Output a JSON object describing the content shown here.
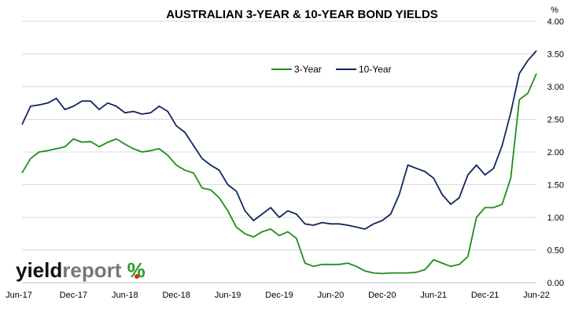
{
  "chart_data": {
    "type": "line",
    "title": "AUSTRALIAN 3-YEAR & 10-YEAR BOND YIELDS",
    "ylabel": "%",
    "ylim": [
      0,
      4
    ],
    "y_ticks": [
      "0.00",
      "0.50",
      "1.00",
      "1.50",
      "2.00",
      "2.50",
      "3.00",
      "3.50",
      "4.00"
    ],
    "y_tick_values": [
      0,
      0.5,
      1,
      1.5,
      2,
      2.5,
      3,
      3.5,
      4
    ],
    "x_ticks": [
      "Jun-17",
      "Dec-17",
      "Jun-18",
      "Dec-18",
      "Jun-19",
      "Dec-19",
      "Jun-20",
      "Dec-20",
      "Jun-21",
      "Dec-21",
      "Jun-22"
    ],
    "x": [
      "2017-06",
      "2017-07",
      "2017-08",
      "2017-09",
      "2017-10",
      "2017-11",
      "2017-12",
      "2018-01",
      "2018-02",
      "2018-03",
      "2018-04",
      "2018-05",
      "2018-06",
      "2018-07",
      "2018-08",
      "2018-09",
      "2018-10",
      "2018-11",
      "2018-12",
      "2019-01",
      "2019-02",
      "2019-03",
      "2019-04",
      "2019-05",
      "2019-06",
      "2019-07",
      "2019-08",
      "2019-09",
      "2019-10",
      "2019-11",
      "2019-12",
      "2020-01",
      "2020-02",
      "2020-03",
      "2020-04",
      "2020-05",
      "2020-06",
      "2020-07",
      "2020-08",
      "2020-09",
      "2020-10",
      "2020-11",
      "2020-12",
      "2021-01",
      "2021-02",
      "2021-03",
      "2021-04",
      "2021-05",
      "2021-06",
      "2021-07",
      "2021-08",
      "2021-09",
      "2021-10",
      "2021-11",
      "2021-12",
      "2022-01",
      "2022-02",
      "2022-03",
      "2022-04",
      "2022-05",
      "2022-06"
    ],
    "series": [
      {
        "name": "3-Year",
        "color": "#1f8f1a",
        "values": [
          1.68,
          1.9,
          2.0,
          2.02,
          2.05,
          2.08,
          2.2,
          2.15,
          2.16,
          2.08,
          2.15,
          2.2,
          2.12,
          2.05,
          2.0,
          2.02,
          2.05,
          1.95,
          1.8,
          1.72,
          1.68,
          1.45,
          1.42,
          1.3,
          1.1,
          0.85,
          0.75,
          0.7,
          0.78,
          0.82,
          0.72,
          0.78,
          0.68,
          0.3,
          0.25,
          0.28,
          0.28,
          0.28,
          0.3,
          0.25,
          0.18,
          0.15,
          0.14,
          0.15,
          0.15,
          0.15,
          0.16,
          0.2,
          0.35,
          0.3,
          0.25,
          0.28,
          0.4,
          1.0,
          1.15,
          1.15,
          1.2,
          1.6,
          2.8,
          2.9,
          3.2
        ]
      },
      {
        "name": "10-Year",
        "color": "#13265e",
        "values": [
          2.42,
          2.7,
          2.72,
          2.75,
          2.82,
          2.65,
          2.7,
          2.78,
          2.78,
          2.65,
          2.75,
          2.7,
          2.6,
          2.62,
          2.58,
          2.6,
          2.7,
          2.62,
          2.4,
          2.3,
          2.1,
          1.9,
          1.8,
          1.72,
          1.5,
          1.4,
          1.1,
          0.95,
          1.05,
          1.15,
          1.0,
          1.1,
          1.05,
          0.9,
          0.88,
          0.92,
          0.9,
          0.9,
          0.88,
          0.85,
          0.82,
          0.9,
          0.95,
          1.05,
          1.35,
          1.8,
          1.75,
          1.7,
          1.6,
          1.35,
          1.2,
          1.3,
          1.65,
          1.8,
          1.65,
          1.75,
          2.1,
          2.6,
          3.2,
          3.4,
          3.55
        ]
      }
    ],
    "legend": "top-center",
    "grid": "horizontal",
    "logo_text": "yieldreport %"
  }
}
